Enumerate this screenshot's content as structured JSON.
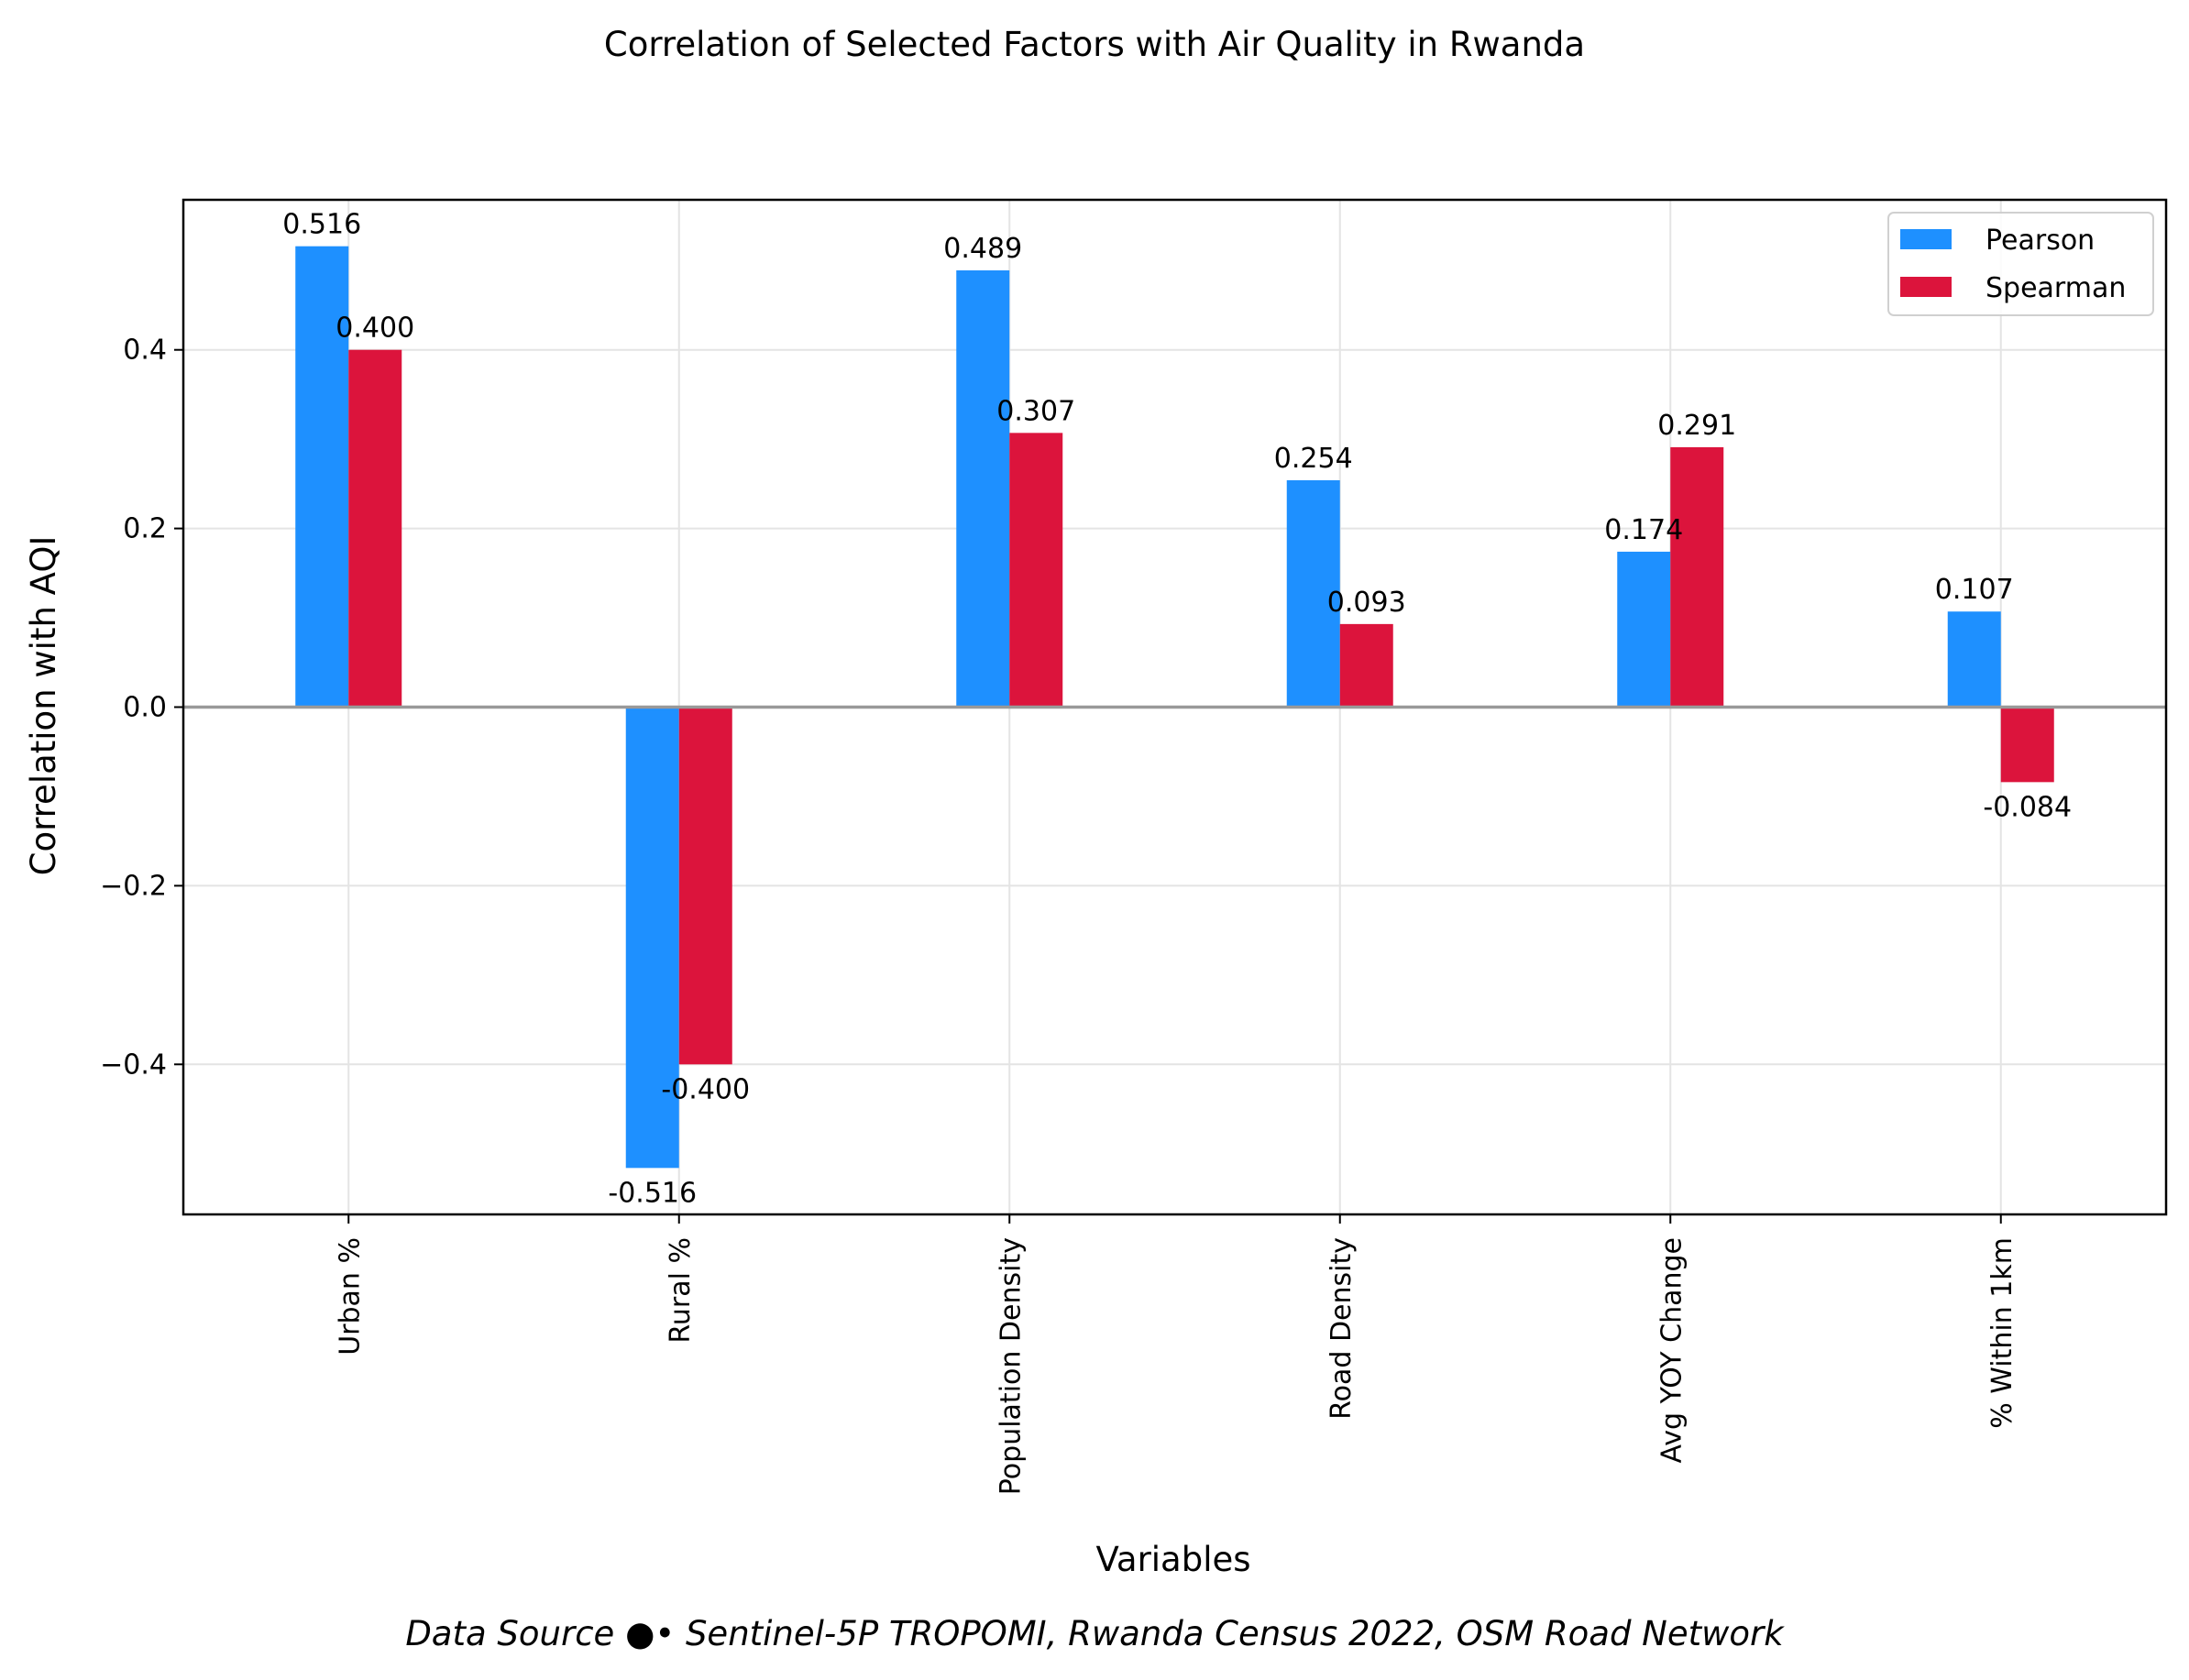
{
  "chart_data": {
    "type": "bar",
    "title": "Correlation of Selected Factors with Air Quality in Rwanda",
    "xlabel": "Variables",
    "ylabel": "Correlation with AQI",
    "categories": [
      "Urban %",
      "Rural %",
      "Population Density",
      "Road Density",
      "Avg YOY Change",
      "% Within 1km"
    ],
    "series": [
      {
        "name": "Pearson",
        "color": "#1E90FF",
        "values": [
          0.516,
          -0.516,
          0.489,
          0.254,
          0.174,
          0.107
        ],
        "labels": [
          "0.516",
          "-0.516",
          "0.489",
          "0.254",
          "0.174",
          "0.107"
        ]
      },
      {
        "name": "Spearman",
        "color": "#DC143C",
        "values": [
          0.4,
          -0.4,
          0.307,
          0.093,
          0.291,
          -0.084
        ],
        "labels": [
          "0.400",
          "-0.400",
          "0.307",
          "0.093",
          "0.291",
          "-0.084"
        ]
      }
    ],
    "ylim": [
      -0.568,
      0.568
    ],
    "yticks": [
      -0.4,
      -0.2,
      0.0,
      0.2,
      0.4
    ],
    "ytick_labels": [
      "−0.4",
      "−0.2",
      "0.0",
      "0.2",
      "0.4"
    ],
    "grid": true,
    "legend_position": "top-right",
    "source_note": "Data Source ●• Sentinel-5P TROPOMI, Rwanda Census 2022, OSM Road Network"
  }
}
